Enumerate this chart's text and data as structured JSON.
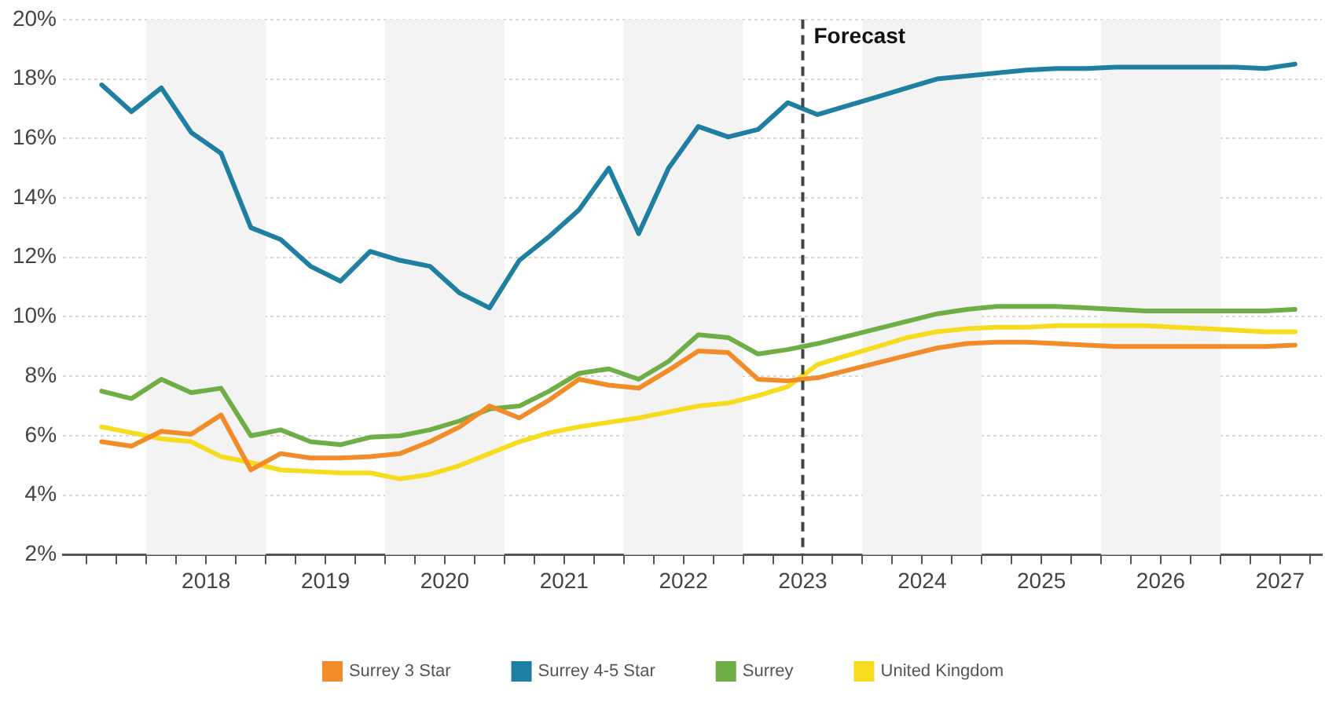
{
  "chart_data": {
    "type": "line",
    "x": [
      2017.625,
      2017.875,
      2018.125,
      2018.375,
      2018.625,
      2018.875,
      2019.125,
      2019.375,
      2019.625,
      2019.875,
      2020.125,
      2020.375,
      2020.625,
      2020.875,
      2021.125,
      2021.375,
      2021.625,
      2021.875,
      2022.125,
      2022.375,
      2022.625,
      2022.875,
      2023.125,
      2023.375,
      2023.625,
      2023.875,
      2024.125,
      2024.375,
      2024.625,
      2024.875,
      2025.125,
      2025.375,
      2025.625,
      2025.875,
      2026.125,
      2026.375,
      2026.625,
      2026.875,
      2027.125,
      2027.375,
      2027.625
    ],
    "series": [
      {
        "name": "Surrey 3 Star",
        "color": "#f28c28",
        "values": [
          5.8,
          5.65,
          6.15,
          6.05,
          6.7,
          4.85,
          5.4,
          5.25,
          5.25,
          5.3,
          5.4,
          5.8,
          6.3,
          7.0,
          6.6,
          7.2,
          7.9,
          7.7,
          7.6,
          8.2,
          8.85,
          8.8,
          7.9,
          7.85,
          7.95,
          8.2,
          8.45,
          8.7,
          8.95,
          9.1,
          9.15,
          9.15,
          9.1,
          9.05,
          9.0,
          9.0,
          9.0,
          9.0,
          9.0,
          9.0,
          9.05
        ]
      },
      {
        "name": "Surrey 4-5 Star",
        "color": "#1f7fa0",
        "values": [
          17.8,
          16.9,
          17.7,
          16.2,
          15.5,
          13.0,
          12.6,
          11.7,
          11.2,
          12.2,
          11.9,
          11.7,
          10.8,
          10.3,
          11.9,
          12.7,
          13.6,
          15.0,
          12.8,
          15.0,
          16.4,
          16.05,
          16.3,
          17.2,
          16.8,
          17.1,
          17.4,
          17.7,
          18.0,
          18.1,
          18.2,
          18.3,
          18.35,
          18.35,
          18.4,
          18.4,
          18.4,
          18.4,
          18.4,
          18.35,
          18.5
        ]
      },
      {
        "name": "Surrey",
        "color": "#6fad46",
        "values": [
          7.5,
          7.25,
          7.9,
          7.45,
          7.6,
          6.0,
          6.2,
          5.8,
          5.7,
          5.95,
          6.0,
          6.2,
          6.5,
          6.9,
          7.0,
          7.5,
          8.1,
          8.25,
          7.9,
          8.5,
          9.4,
          9.3,
          8.75,
          8.9,
          9.1,
          9.35,
          9.6,
          9.85,
          10.1,
          10.25,
          10.35,
          10.35,
          10.35,
          10.3,
          10.25,
          10.2,
          10.2,
          10.2,
          10.2,
          10.2,
          10.25
        ]
      },
      {
        "name": "United Kingdom",
        "color": "#f5dc1e",
        "values": [
          6.3,
          6.1,
          5.9,
          5.8,
          5.3,
          5.1,
          4.85,
          4.8,
          4.75,
          4.75,
          4.55,
          4.7,
          5.0,
          5.4,
          5.8,
          6.1,
          6.3,
          6.45,
          6.6,
          6.8,
          7.0,
          7.1,
          7.35,
          7.65,
          8.4,
          8.7,
          9.0,
          9.3,
          9.5,
          9.6,
          9.65,
          9.65,
          9.7,
          9.7,
          9.7,
          9.7,
          9.65,
          9.6,
          9.55,
          9.5,
          9.5
        ]
      }
    ],
    "xlim": [
      2017.3,
      2027.85
    ],
    "xticks": [
      {
        "value": 2017.5,
        "label": null
      },
      {
        "value": 2017.75,
        "label": null
      },
      {
        "value": 2018,
        "label": null
      },
      {
        "value": 2018.25,
        "label": null
      },
      {
        "value": 2018.5,
        "label": "2018"
      },
      {
        "value": 2018.75,
        "label": null
      },
      {
        "value": 2019,
        "label": null
      },
      {
        "value": 2019.25,
        "label": null
      },
      {
        "value": 2019.5,
        "label": "2019"
      },
      {
        "value": 2019.75,
        "label": null
      },
      {
        "value": 2020,
        "label": null
      },
      {
        "value": 2020.25,
        "label": null
      },
      {
        "value": 2020.5,
        "label": "2020"
      },
      {
        "value": 2020.75,
        "label": null
      },
      {
        "value": 2021,
        "label": null
      },
      {
        "value": 2021.25,
        "label": null
      },
      {
        "value": 2021.5,
        "label": "2021"
      },
      {
        "value": 2021.75,
        "label": null
      },
      {
        "value": 2022,
        "label": null
      },
      {
        "value": 2022.25,
        "label": null
      },
      {
        "value": 2022.5,
        "label": "2022"
      },
      {
        "value": 2022.75,
        "label": null
      },
      {
        "value": 2023,
        "label": null
      },
      {
        "value": 2023.25,
        "label": null
      },
      {
        "value": 2023.5,
        "label": "2023"
      },
      {
        "value": 2023.75,
        "label": null
      },
      {
        "value": 2024,
        "label": null
      },
      {
        "value": 2024.25,
        "label": null
      },
      {
        "value": 2024.5,
        "label": "2024"
      },
      {
        "value": 2024.75,
        "label": null
      },
      {
        "value": 2025,
        "label": null
      },
      {
        "value": 2025.25,
        "label": null
      },
      {
        "value": 2025.5,
        "label": "2025"
      },
      {
        "value": 2025.75,
        "label": null
      },
      {
        "value": 2026,
        "label": null
      },
      {
        "value": 2026.25,
        "label": null
      },
      {
        "value": 2026.5,
        "label": "2026"
      },
      {
        "value": 2026.75,
        "label": null
      },
      {
        "value": 2027,
        "label": null
      },
      {
        "value": 2027.25,
        "label": null
      },
      {
        "value": 2027.5,
        "label": "2027"
      },
      {
        "value": 2027.75,
        "label": null
      }
    ],
    "ylim": [
      2,
      20
    ],
    "yticks": [
      {
        "value": 2,
        "label": "2%"
      },
      {
        "value": 4,
        "label": "4%"
      },
      {
        "value": 6,
        "label": "6%"
      },
      {
        "value": 8,
        "label": "8%"
      },
      {
        "value": 10,
        "label": "10%"
      },
      {
        "value": 12,
        "label": "12%"
      },
      {
        "value": 14,
        "label": "14%"
      },
      {
        "value": 16,
        "label": "16%"
      },
      {
        "value": 18,
        "label": "18%"
      },
      {
        "value": 20,
        "label": "20%"
      }
    ],
    "bands": [
      {
        "axis": "x",
        "from": 2018,
        "to": 2019,
        "label": null,
        "color": "#f3f3f3"
      },
      {
        "axis": "x",
        "from": 2020,
        "to": 2021,
        "label": null,
        "color": "#f3f3f3"
      },
      {
        "axis": "x",
        "from": 2022,
        "to": 2023,
        "label": null,
        "color": "#f3f3f3"
      },
      {
        "axis": "x",
        "from": 2024,
        "to": 2025,
        "label": null,
        "color": "#f3f3f3"
      },
      {
        "axis": "x",
        "from": 2026,
        "to": 2027,
        "label": null,
        "color": "#f3f3f3"
      }
    ],
    "ref_lines": [
      {
        "axis": "x",
        "value": 2023.5,
        "label": "Forecast",
        "color": "#444444",
        "line_style": "dashed"
      }
    ],
    "grid": "y",
    "legend": "bottom",
    "marker": "none",
    "line_style": "solid"
  }
}
